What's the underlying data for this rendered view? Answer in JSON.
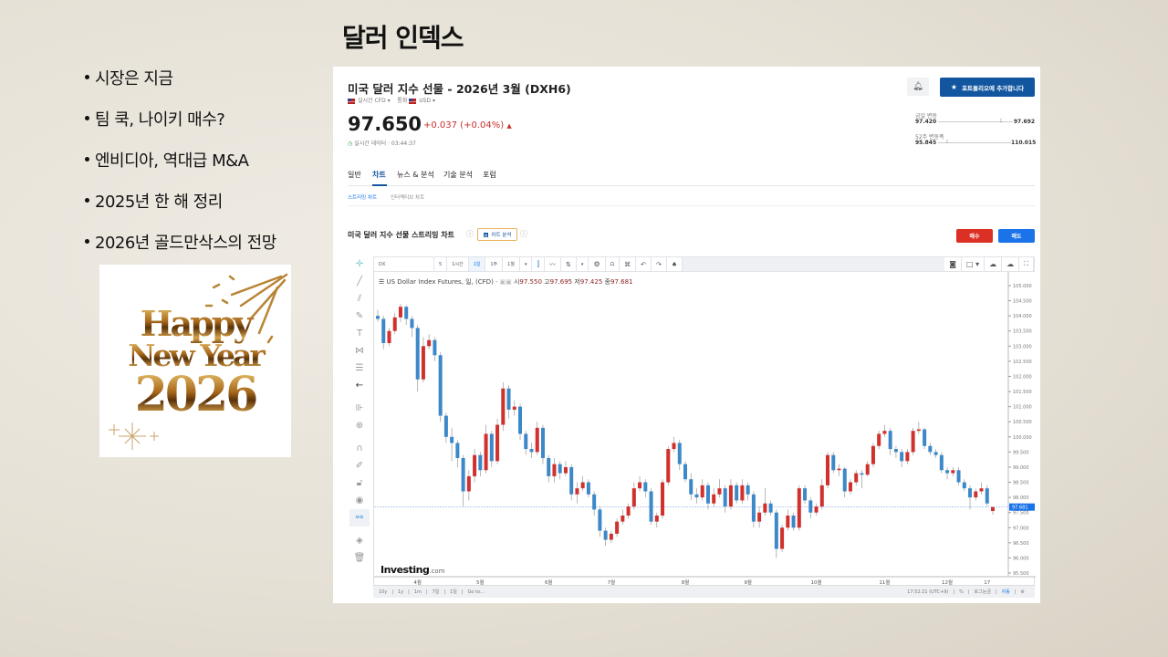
{
  "slide": {
    "title": "달러 인덱스",
    "bullets": [
      "시장은 지금",
      "팀 쿡, 나이키 매수?",
      "엔비디아, 역대급 M&A",
      "2025년 한 해 정리",
      "2026년 골드만삭스의 전망"
    ],
    "image_text": {
      "line1": "Happy",
      "line2": "New Year",
      "line3": "2026"
    }
  },
  "quote": {
    "title": "미국 달러 지수 선물 - 2026년 3월 (DXH6)",
    "source": "실시간 CFD",
    "currency_label": "통화",
    "currency": "USD",
    "price": "97.650",
    "change": "+0.037 (+0.04%)",
    "status": "실시간 데이터 · 03:44:37",
    "alert_icon": "bell-plus-icon",
    "portfolio_button": "포트폴리오에 추가합니다",
    "day_range": {
      "label": "금일 변동",
      "low": "97.420",
      "high": "97.692",
      "position": 0.9
    },
    "week52_range": {
      "label": "52주 변동폭",
      "low": "95.845",
      "high": "110.015",
      "position": 0.13
    },
    "colors": {
      "up": "#d0312d",
      "down": "#3c88c8",
      "brand_blue": "#1256a0",
      "sell_blue": "#1a73e8"
    }
  },
  "tabs": [
    {
      "label": "일반"
    },
    {
      "label": "차트",
      "active": true
    },
    {
      "label": "뉴스 & 분석"
    },
    {
      "label": "기술 분석"
    },
    {
      "label": "포럼"
    }
  ],
  "subtabs": [
    {
      "label": "스트리밍 차트",
      "active": true
    },
    {
      "label": "인터랙티브 차트"
    }
  ],
  "chart_section": {
    "title": "미국 달러 지수 선물 스트리밍 차트",
    "analysis_badge": "차트 분석",
    "buy": "매수",
    "sell": "매도"
  },
  "toolbar": {
    "symbol": "DX",
    "intervals": [
      "5",
      "1시간",
      "1일",
      "1주",
      "1월"
    ],
    "active_interval": "1일"
  },
  "legend": {
    "name": "US Dollar Index Futures, 일, (CFD)",
    "open_label": "시",
    "open": "97.550",
    "high_label": "고",
    "high": "97.695",
    "low_label": "저",
    "low": "97.425",
    "close_label": "종",
    "close": "97.681"
  },
  "watermark": {
    "brand": "Investing",
    "suffix": ".com"
  },
  "bottombar": {
    "ranges": [
      "10y",
      "1y",
      "1m",
      "7일",
      "1일",
      "Go to..."
    ],
    "time": "17:52:21 (UTC+9)",
    "percent": "%",
    "log": "로그눈금",
    "auto": "자동"
  },
  "chart_data": {
    "type": "candlestick",
    "ylim": [
      95.3,
      105.45
    ],
    "yticks": [
      "105.000",
      "104.500",
      "104.000",
      "103.500",
      "103.000",
      "102.500",
      "102.000",
      "101.500",
      "101.000",
      "100.500",
      "100.000",
      "99.500",
      "99.000",
      "98.500",
      "98.000",
      "97.500",
      "97.000",
      "96.500",
      "96.000",
      "95.500"
    ],
    "last_price_label": "97.681",
    "xticks": [
      {
        "label": "4월",
        "index": 7
      },
      {
        "label": "5월",
        "index": 18
      },
      {
        "label": "6월",
        "index": 30
      },
      {
        "label": "7월",
        "index": 41
      },
      {
        "label": "8월",
        "index": 54
      },
      {
        "label": "9월",
        "index": 65
      },
      {
        "label": "10월",
        "index": 77
      },
      {
        "label": "11월",
        "index": 89
      },
      {
        "label": "12월",
        "index": 100
      },
      {
        "label": "17",
        "index": 107
      }
    ],
    "ohlc": [
      [
        104.0,
        104.2,
        103.8,
        103.9
      ],
      [
        103.9,
        104.0,
        102.9,
        103.1
      ],
      [
        103.1,
        103.6,
        103.0,
        103.5
      ],
      [
        103.5,
        104.1,
        103.4,
        103.95
      ],
      [
        103.95,
        104.4,
        103.8,
        104.3
      ],
      [
        104.3,
        104.35,
        103.7,
        103.9
      ],
      [
        103.9,
        104.0,
        103.3,
        103.6
      ],
      [
        103.6,
        103.7,
        101.5,
        101.9
      ],
      [
        101.9,
        103.3,
        101.8,
        103.0
      ],
      [
        103.0,
        103.4,
        102.9,
        103.2
      ],
      [
        103.2,
        103.3,
        102.5,
        102.7
      ],
      [
        102.7,
        102.8,
        100.5,
        100.7
      ],
      [
        100.7,
        100.8,
        99.8,
        100.0
      ],
      [
        100.0,
        100.3,
        99.2,
        99.8
      ],
      [
        99.8,
        99.9,
        99.0,
        99.3
      ],
      [
        99.3,
        99.4,
        97.7,
        98.2
      ],
      [
        98.2,
        98.9,
        97.9,
        98.7
      ],
      [
        98.7,
        99.6,
        98.5,
        99.4
      ],
      [
        99.4,
        99.5,
        98.7,
        98.9
      ],
      [
        98.9,
        100.4,
        98.8,
        100.1
      ],
      [
        100.1,
        100.2,
        99.0,
        99.2
      ],
      [
        99.2,
        100.6,
        99.1,
        100.4
      ],
      [
        100.4,
        101.8,
        100.2,
        101.6
      ],
      [
        101.6,
        101.7,
        100.6,
        100.9
      ],
      [
        100.9,
        101.2,
        100.7,
        101.0
      ],
      [
        101.0,
        101.1,
        99.9,
        100.1
      ],
      [
        100.1,
        100.2,
        99.4,
        99.6
      ],
      [
        99.6,
        99.8,
        99.3,
        99.5
      ],
      [
        99.5,
        100.5,
        99.4,
        100.3
      ],
      [
        100.3,
        100.4,
        99.1,
        99.3
      ],
      [
        99.3,
        99.4,
        98.5,
        98.7
      ],
      [
        98.7,
        99.3,
        98.5,
        99.1
      ],
      [
        99.1,
        99.2,
        98.6,
        98.8
      ],
      [
        98.8,
        99.2,
        98.7,
        99.0
      ],
      [
        99.0,
        99.1,
        97.9,
        98.1
      ],
      [
        98.1,
        98.5,
        97.8,
        98.3
      ],
      [
        98.3,
        98.7,
        98.2,
        98.5
      ],
      [
        98.5,
        98.6,
        98.0,
        98.1
      ],
      [
        98.1,
        98.2,
        97.4,
        97.6
      ],
      [
        97.6,
        97.7,
        96.7,
        96.9
      ],
      [
        96.9,
        97.0,
        96.4,
        96.6
      ],
      [
        96.6,
        96.9,
        96.5,
        96.8
      ],
      [
        96.8,
        97.3,
        96.7,
        97.2
      ],
      [
        97.2,
        97.6,
        97.1,
        97.4
      ],
      [
        97.4,
        97.8,
        97.3,
        97.7
      ],
      [
        97.7,
        98.5,
        97.6,
        98.3
      ],
      [
        98.3,
        98.7,
        98.2,
        98.5
      ],
      [
        98.5,
        98.6,
        98.0,
        98.2
      ],
      [
        98.2,
        98.3,
        97.1,
        97.2
      ],
      [
        97.2,
        97.5,
        97.0,
        97.4
      ],
      [
        97.4,
        98.6,
        97.3,
        98.5
      ],
      [
        98.5,
        99.7,
        98.4,
        99.6
      ],
      [
        99.6,
        100.0,
        99.5,
        99.8
      ],
      [
        99.8,
        99.9,
        98.9,
        99.1
      ],
      [
        99.1,
        99.2,
        98.5,
        98.6
      ],
      [
        98.6,
        98.8,
        97.9,
        98.1
      ],
      [
        98.1,
        98.3,
        97.8,
        98.0
      ],
      [
        98.0,
        98.6,
        97.9,
        98.4
      ],
      [
        98.4,
        98.5,
        97.6,
        97.8
      ],
      [
        97.8,
        98.3,
        97.7,
        98.1
      ],
      [
        98.1,
        98.6,
        98.0,
        98.3
      ],
      [
        98.3,
        98.4,
        97.5,
        97.7
      ],
      [
        97.7,
        98.6,
        97.6,
        98.4
      ],
      [
        98.4,
        98.5,
        97.8,
        97.9
      ],
      [
        97.9,
        98.6,
        97.8,
        98.4
      ],
      [
        98.4,
        98.5,
        97.9,
        98.1
      ],
      [
        98.1,
        98.2,
        97.0,
        97.2
      ],
      [
        97.2,
        97.7,
        97.0,
        97.5
      ],
      [
        97.5,
        98.3,
        97.4,
        97.8
      ],
      [
        97.8,
        97.9,
        97.4,
        97.5
      ],
      [
        97.5,
        97.6,
        96.0,
        96.3
      ],
      [
        96.3,
        97.1,
        96.2,
        97.0
      ],
      [
        97.0,
        97.6,
        96.9,
        97.4
      ],
      [
        97.4,
        97.5,
        96.9,
        97.0
      ],
      [
        97.0,
        98.4,
        96.9,
        98.3
      ],
      [
        98.3,
        98.4,
        97.8,
        97.9
      ],
      [
        97.9,
        98.0,
        97.3,
        97.5
      ],
      [
        97.5,
        97.8,
        97.4,
        97.7
      ],
      [
        97.7,
        98.6,
        97.6,
        98.4
      ],
      [
        98.4,
        99.5,
        98.3,
        99.4
      ],
      [
        99.4,
        99.5,
        98.8,
        98.9
      ],
      [
        98.9,
        99.1,
        98.7,
        98.95
      ],
      [
        98.95,
        99.0,
        98.0,
        98.2
      ],
      [
        98.2,
        98.6,
        98.1,
        98.5
      ],
      [
        98.5,
        98.9,
        98.4,
        98.8
      ],
      [
        98.8,
        98.9,
        98.3,
        98.75
      ],
      [
        98.75,
        99.2,
        98.7,
        99.1
      ],
      [
        99.1,
        99.8,
        99.0,
        99.7
      ],
      [
        99.7,
        100.2,
        99.6,
        100.1
      ],
      [
        100.1,
        100.4,
        100.0,
        100.2
      ],
      [
        100.2,
        100.3,
        99.4,
        99.6
      ],
      [
        99.6,
        99.7,
        99.3,
        99.5
      ],
      [
        99.5,
        99.6,
        99.0,
        99.2
      ],
      [
        99.2,
        99.6,
        99.1,
        99.5
      ],
      [
        99.5,
        100.3,
        99.4,
        100.2
      ],
      [
        100.2,
        100.5,
        100.1,
        100.25
      ],
      [
        100.25,
        100.3,
        99.6,
        99.7
      ],
      [
        99.7,
        99.8,
        99.4,
        99.5
      ],
      [
        99.5,
        99.6,
        99.3,
        99.4
      ],
      [
        99.4,
        99.5,
        98.8,
        98.9
      ],
      [
        98.9,
        99.0,
        98.6,
        98.8
      ],
      [
        98.8,
        99.0,
        98.7,
        98.9
      ],
      [
        98.9,
        99.0,
        98.4,
        98.5
      ],
      [
        98.5,
        98.6,
        98.2,
        98.3
      ],
      [
        98.3,
        98.4,
        97.6,
        98.0
      ],
      [
        98.0,
        98.3,
        97.9,
        98.2
      ],
      [
        98.2,
        98.5,
        98.1,
        98.3
      ],
      [
        98.3,
        98.4,
        97.7,
        97.8
      ],
      [
        97.55,
        97.695,
        97.425,
        97.681
      ]
    ]
  }
}
